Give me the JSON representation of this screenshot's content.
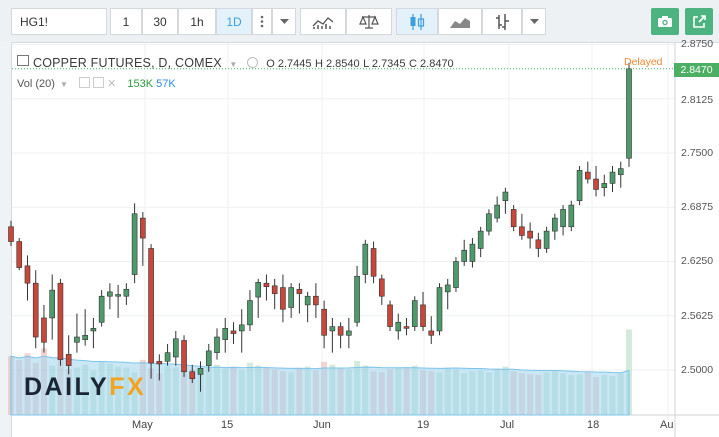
{
  "toolbar": {
    "symbol": "HG1!",
    "intervals": [
      "1",
      "30",
      "1h",
      "1D"
    ],
    "active_interval": "1D"
  },
  "legend": {
    "title": "COPPER FUTURES, D, COMEX",
    "open": "O 2.7445",
    "high": "H 2.8540",
    "low": "L 2.7345",
    "close": "C 2.8470"
  },
  "volume": {
    "label": "Vol (20)",
    "value1": "153K",
    "value2": "57K"
  },
  "status": {
    "delayed": "Delayed",
    "last_price": "2.8470"
  },
  "brand": {
    "part1": "DAILY",
    "part2": "FX"
  },
  "colors": {
    "up": "#4e9a6d",
    "down": "#c8473b",
    "last": "#4caf64",
    "accent": "#3c9fe0"
  },
  "chart_data": {
    "type": "candlestick",
    "title": "COPPER FUTURES, D, COMEX",
    "y_ticks": [
      "2.8750",
      "2.8125",
      "2.7500",
      "2.6875",
      "2.6250",
      "2.5625",
      "2.5000"
    ],
    "ylim": [
      2.45,
      2.875
    ],
    "x_ticks": [
      "May",
      "15",
      "Jun",
      "19",
      "Jul",
      "18",
      "Au"
    ],
    "ohlc": [
      [
        2.665,
        2.672,
        2.643,
        2.648
      ],
      [
        2.648,
        2.652,
        2.615,
        2.618
      ],
      [
        2.62,
        2.632,
        2.58,
        2.6
      ],
      [
        2.6,
        2.615,
        2.525,
        2.538
      ],
      [
        2.56,
        2.575,
        2.52,
        2.532
      ],
      [
        2.56,
        2.61,
        2.535,
        2.592
      ],
      [
        2.6,
        2.605,
        2.505,
        2.512
      ],
      [
        2.518,
        2.54,
        2.495,
        2.505
      ],
      [
        2.532,
        2.565,
        2.52,
        2.538
      ],
      [
        2.535,
        2.57,
        2.528,
        2.54
      ],
      [
        2.545,
        2.56,
        2.525,
        2.548
      ],
      [
        2.555,
        2.592,
        2.55,
        2.585
      ],
      [
        2.585,
        2.6,
        2.57,
        2.59
      ],
      [
        2.585,
        2.598,
        2.56,
        2.587
      ],
      [
        2.585,
        2.6,
        2.575,
        2.593
      ],
      [
        2.61,
        2.692,
        2.6,
        2.68
      ],
      [
        2.675,
        2.682,
        2.62,
        2.652
      ],
      [
        2.64,
        2.645,
        2.49,
        2.508
      ],
      [
        2.51,
        2.518,
        2.488,
        2.507
      ],
      [
        2.51,
        2.53,
        2.505,
        2.52
      ],
      [
        2.515,
        2.545,
        2.505,
        2.536
      ],
      [
        2.534,
        2.54,
        2.492,
        2.498
      ],
      [
        2.498,
        2.506,
        2.485,
        2.49
      ],
      [
        2.495,
        2.51,
        2.475,
        2.502
      ],
      [
        2.505,
        2.53,
        2.498,
        2.522
      ],
      [
        2.52,
        2.548,
        2.512,
        2.538
      ],
      [
        2.535,
        2.56,
        2.52,
        2.548
      ],
      [
        2.545,
        2.555,
        2.53,
        2.542
      ],
      [
        2.545,
        2.57,
        2.52,
        2.552
      ],
      [
        2.552,
        2.592,
        2.545,
        2.58
      ],
      [
        2.584,
        2.605,
        2.56,
        2.601
      ],
      [
        2.6,
        2.61,
        2.58,
        2.596
      ],
      [
        2.597,
        2.605,
        2.57,
        2.588
      ],
      [
        2.595,
        2.61,
        2.555,
        2.57
      ],
      [
        2.572,
        2.6,
        2.56,
        2.595
      ],
      [
        2.593,
        2.6,
        2.565,
        2.588
      ],
      [
        2.575,
        2.59,
        2.555,
        2.585
      ],
      [
        2.585,
        2.6,
        2.56,
        2.575
      ],
      [
        2.57,
        2.58,
        2.525,
        2.54
      ],
      [
        2.545,
        2.56,
        2.52,
        2.55
      ],
      [
        2.55,
        2.555,
        2.525,
        2.54
      ],
      [
        2.54,
        2.56,
        2.525,
        2.545
      ],
      [
        2.555,
        2.62,
        2.55,
        2.608
      ],
      [
        2.61,
        2.65,
        2.6,
        2.645
      ],
      [
        2.64,
        2.648,
        2.6,
        2.608
      ],
      [
        2.605,
        2.61,
        2.575,
        2.585
      ],
      [
        2.575,
        2.58,
        2.545,
        2.55
      ],
      [
        2.545,
        2.565,
        2.535,
        2.555
      ],
      [
        2.55,
        2.56,
        2.54,
        2.548
      ],
      [
        2.55,
        2.585,
        2.545,
        2.58
      ],
      [
        2.575,
        2.59,
        2.545,
        2.55
      ],
      [
        2.545,
        2.562,
        2.53,
        2.54
      ],
      [
        2.545,
        2.6,
        2.54,
        2.595
      ],
      [
        2.59,
        2.605,
        2.57,
        2.598
      ],
      [
        2.595,
        2.63,
        2.59,
        2.625
      ],
      [
        2.625,
        2.65,
        2.62,
        2.638
      ],
      [
        2.625,
        2.652,
        2.618,
        2.645
      ],
      [
        2.64,
        2.665,
        2.63,
        2.66
      ],
      [
        2.66,
        2.685,
        2.655,
        2.68
      ],
      [
        2.675,
        2.7,
        2.67,
        2.69
      ],
      [
        2.695,
        2.71,
        2.68,
        2.705
      ],
      [
        2.685,
        2.69,
        2.66,
        2.665
      ],
      [
        2.665,
        2.68,
        2.65,
        2.655
      ],
      [
        2.66,
        2.67,
        2.64,
        2.652
      ],
      [
        2.65,
        2.658,
        2.63,
        2.64
      ],
      [
        2.64,
        2.665,
        2.635,
        2.66
      ],
      [
        2.66,
        2.68,
        2.65,
        2.675
      ],
      [
        2.665,
        2.69,
        2.655,
        2.685
      ],
      [
        2.665,
        2.695,
        2.66,
        2.69
      ],
      [
        2.695,
        2.735,
        2.69,
        2.73
      ],
      [
        2.728,
        2.74,
        2.715,
        2.72
      ],
      [
        2.72,
        2.735,
        2.7,
        2.708
      ],
      [
        2.71,
        2.725,
        2.7,
        2.715
      ],
      [
        2.715,
        2.735,
        2.705,
        2.728
      ],
      [
        2.725,
        2.74,
        2.71,
        2.732
      ],
      [
        2.744,
        2.854,
        2.734,
        2.847
      ]
    ],
    "volume": [
      62,
      58,
      65,
      55,
      70,
      52,
      60,
      48,
      50,
      53,
      47,
      56,
      54,
      51,
      50,
      45,
      58,
      49,
      44,
      52,
      50,
      46,
      48,
      44,
      50,
      53,
      49,
      51,
      47,
      55,
      52,
      50,
      48,
      46,
      45,
      49,
      51,
      47,
      56,
      53,
      50,
      48,
      57,
      52,
      46,
      45,
      48,
      50,
      49,
      52,
      47,
      46,
      45,
      50,
      48,
      44,
      46,
      47,
      45,
      49,
      51,
      46,
      44,
      43,
      42,
      45,
      47,
      44,
      42,
      43,
      45,
      40,
      42,
      41,
      44,
      90
    ]
  }
}
